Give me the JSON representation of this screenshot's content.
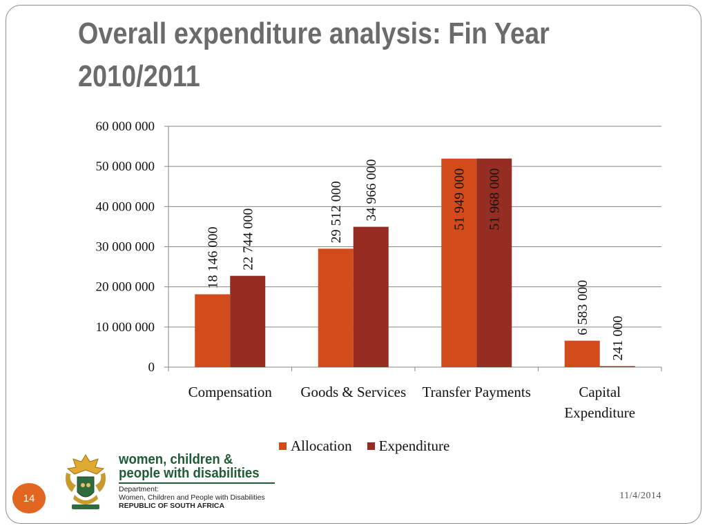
{
  "slide": {
    "title": "Overall expenditure analysis: Fin Year\n2010/2011",
    "page_number": "14",
    "date": "11/4/2014"
  },
  "logo": {
    "line1": "women, children &",
    "line2": "people with disabilities",
    "dept_label": "Department:",
    "dept_name": "Women, Children and People with Disabilities",
    "country": "REPUBLIC OF SOUTH AFRICA",
    "colors": {
      "brand_green": "#1f5c34",
      "seal_gold": "#c99a2e"
    }
  },
  "chart_data": {
    "type": "bar",
    "categories": [
      "Compensation",
      "Goods & Services",
      "Transfer Payments",
      "Capital\nExpenditure"
    ],
    "series": [
      {
        "name": "Allocation",
        "color": "#d24b1a",
        "values": [
          18146000,
          29512000,
          51949000,
          6583000
        ],
        "labels": [
          "18 146 000",
          "29 512 000",
          "51 949 000",
          "6 583 000"
        ]
      },
      {
        "name": "Expenditure",
        "color": "#962d22",
        "values": [
          22744000,
          34966000,
          51968000,
          241000
        ],
        "labels": [
          "22 744 000",
          "34 966 000",
          "51 968 000",
          "241 000"
        ]
      }
    ],
    "ylim": [
      0,
      60000000
    ],
    "yticks": [
      0,
      10000000,
      20000000,
      30000000,
      40000000,
      50000000,
      60000000
    ],
    "ytick_labels": [
      "0",
      "10 000 000",
      "20 000 000",
      "30 000 000",
      "40 000 000",
      "50 000 000",
      "60 000 000"
    ],
    "grid": true,
    "legend_position": "bottom"
  }
}
